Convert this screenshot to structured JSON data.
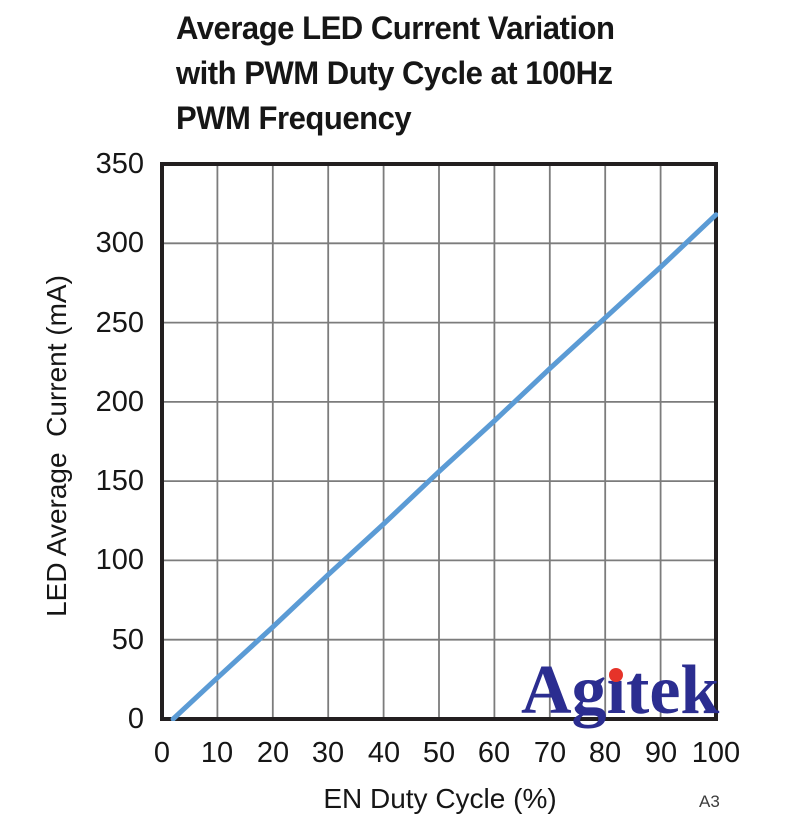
{
  "title": {
    "lines": [
      "Average LED Current Variation",
      "with PWM Duty Cycle at 100Hz",
      "PWM Frequency"
    ]
  },
  "axes": {
    "y_label": "LED Average  Current (mA)",
    "x_label": "EN Duty Cycle (%)",
    "y_ticks": [
      "350",
      "300",
      "250",
      "200",
      "150",
      "100",
      "50",
      "0"
    ],
    "x_ticks": [
      "0",
      "10",
      "20",
      "30",
      "40",
      "50",
      "60",
      "70",
      "80",
      "90",
      "100"
    ]
  },
  "footnote": "A3",
  "watermark": {
    "text": "Agitek",
    "pre_i": "Ag",
    "i_char": "ı",
    "post_i": "tek",
    "text_color": "#2b2d90",
    "dot_color": "#e63329"
  },
  "colors": {
    "line": "#5b9bd5",
    "grid": "#7c7c7c",
    "frame": "#231f20",
    "text": "#161616"
  },
  "chart_data": {
    "type": "line",
    "title": "Average LED Current Variation with PWM Duty Cycle at 100Hz PWM Frequency",
    "xlabel": "EN Duty Cycle (%)",
    "ylabel": "LED Average Current (mA)",
    "xlim": [
      0,
      100
    ],
    "ylim": [
      0,
      350
    ],
    "x_ticks": [
      0,
      10,
      20,
      30,
      40,
      50,
      60,
      70,
      80,
      90,
      100
    ],
    "y_ticks": [
      0,
      50,
      100,
      150,
      200,
      250,
      300,
      350
    ],
    "grid": true,
    "legend": false,
    "series": [
      {
        "name": "led-average-current",
        "color": "#5b9bd5",
        "x": [
          2,
          10,
          20,
          30,
          40,
          50,
          60,
          70,
          80,
          90,
          100
        ],
        "y": [
          0,
          26,
          58,
          91,
          123,
          156,
          188,
          221,
          253,
          285,
          318
        ]
      }
    ]
  }
}
